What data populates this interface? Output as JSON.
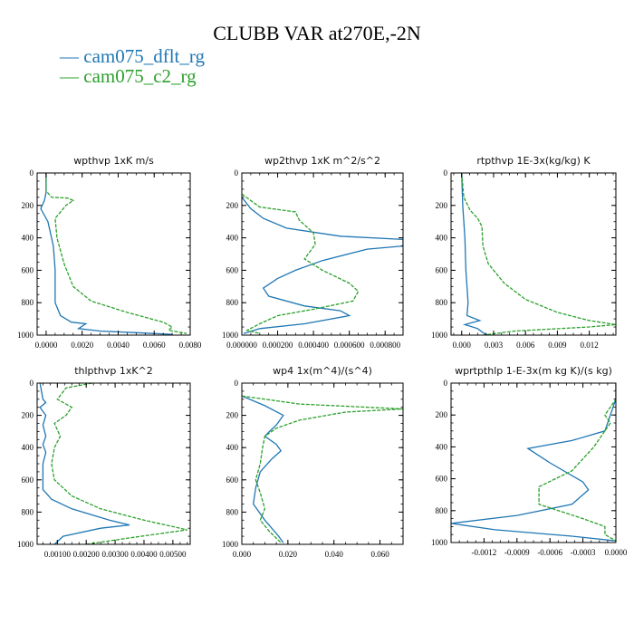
{
  "title": "CLUBB VAR at270E,-2N",
  "legend": [
    {
      "label": "— cam075_dflt_rg",
      "color": "#1f77b4"
    },
    {
      "label": "— cam075_c2_rg",
      "color": "#2ca02c"
    }
  ],
  "chart_data": [
    {
      "type": "line",
      "title": "wpthvp   1xK m/s",
      "xlim": [
        -0.0005,
        0.008
      ],
      "ylim": [
        1000,
        0
      ],
      "xticks": [
        0,
        0.002,
        0.004,
        0.006,
        0.008
      ],
      "xticklabels": [
        "0.0000",
        "0.0020",
        "0.0040",
        "0.0060",
        "0.0080"
      ],
      "yticks": [
        0,
        200,
        400,
        600,
        800,
        1000
      ],
      "yticklabels": [
        "0",
        "200",
        "400",
        "600",
        "800",
        "1000"
      ],
      "series": [
        {
          "name": "cam075_dflt_rg",
          "color": "#1f77b4",
          "points": [
            [
              0,
              0
            ],
            [
              0,
              120
            ],
            [
              -0.0001,
              170
            ],
            [
              -0.0003,
              220
            ],
            [
              0.0001,
              300
            ],
            [
              0.0004,
              450
            ],
            [
              0.0005,
              600
            ],
            [
              0.0005,
              800
            ],
            [
              0.0008,
              880
            ],
            [
              0.0014,
              920
            ],
            [
              0.0022,
              930
            ],
            [
              0.0018,
              960
            ],
            [
              0.003,
              975
            ],
            [
              0.005,
              985
            ],
            [
              0.007,
              995
            ]
          ]
        },
        {
          "name": "cam075_c2_rg",
          "color": "#2ca02c",
          "points": [
            [
              0,
              0
            ],
            [
              0,
              110
            ],
            [
              0.0003,
              150
            ],
            [
              0.0012,
              155
            ],
            [
              0.0015,
              170
            ],
            [
              0.0011,
              200
            ],
            [
              0.0005,
              280
            ],
            [
              0.0006,
              400
            ],
            [
              0.001,
              560
            ],
            [
              0.0015,
              700
            ],
            [
              0.0025,
              790
            ],
            [
              0.0045,
              860
            ],
            [
              0.0065,
              920
            ],
            [
              0.007,
              950
            ],
            [
              0.0068,
              970
            ],
            [
              0.0078,
              990
            ]
          ]
        }
      ]
    },
    {
      "type": "line",
      "title": "wp2thvp   1xK m^2/s^2",
      "xlim": [
        0,
        0.0009
      ],
      "ylim": [
        1000,
        0
      ],
      "xticks": [
        0,
        0.0002,
        0.0004,
        0.0006,
        0.0008
      ],
      "xticklabels": [
        "0.000000",
        "0.000200",
        "0.000400",
        "0.000600",
        "0.000800"
      ],
      "yticks": [
        0,
        200,
        400,
        600,
        800,
        1000
      ],
      "yticklabels": [
        "0",
        "200",
        "400",
        "600",
        "800",
        "1000"
      ],
      "series": [
        {
          "name": "cam075_dflt_rg",
          "color": "#1f77b4",
          "points": [
            [
              0,
              150
            ],
            [
              5e-05,
              220
            ],
            [
              0.00012,
              280
            ],
            [
              0.00025,
              340
            ],
            [
              0.00055,
              390
            ],
            [
              0.0009,
              410
            ],
            [
              0.0009,
              450
            ],
            [
              0.0007,
              470
            ],
            [
              0.00045,
              540
            ],
            [
              0.0003,
              600
            ],
            [
              0.0002,
              650
            ],
            [
              0.00012,
              710
            ],
            [
              0.00015,
              760
            ],
            [
              0.00035,
              820
            ],
            [
              0.00055,
              850
            ],
            [
              0.0006,
              880
            ],
            [
              0.00035,
              930
            ],
            [
              0.0001,
              960
            ],
            [
              1e-05,
              990
            ]
          ]
        },
        {
          "name": "cam075_c2_rg",
          "color": "#2ca02c",
          "points": [
            [
              0,
              130
            ],
            [
              0.0001,
              210
            ],
            [
              0.0003,
              240
            ],
            [
              0.00032,
              290
            ],
            [
              0.0004,
              370
            ],
            [
              0.00041,
              440
            ],
            [
              0.00035,
              530
            ],
            [
              0.00045,
              600
            ],
            [
              0.0006,
              680
            ],
            [
              0.00065,
              730
            ],
            [
              0.00062,
              790
            ],
            [
              0.0004,
              840
            ],
            [
              0.0002,
              880
            ],
            [
              0.0001,
              930
            ],
            [
              3e-05,
              970
            ],
            [
              0.0001,
              990
            ]
          ]
        }
      ]
    },
    {
      "type": "line",
      "title": "rtpthvp   1E-3x(kg/kg) K",
      "xlim": [
        -0.001,
        0.0145
      ],
      "ylim": [
        1000,
        0
      ],
      "xticks": [
        0,
        0.003,
        0.006,
        0.009,
        0.012
      ],
      "xticklabels": [
        "0.000",
        "0.003",
        "0.006",
        "0.009",
        "0.012"
      ],
      "yticks": [
        0,
        200,
        400,
        600,
        800,
        1000
      ],
      "yticklabels": [
        "0",
        "200",
        "400",
        "600",
        "800",
        "1000"
      ],
      "series": [
        {
          "name": "cam075_dflt_rg",
          "color": "#1f77b4",
          "points": [
            [
              0,
              0
            ],
            [
              0.0001,
              200
            ],
            [
              0.0003,
              400
            ],
            [
              0.0004,
              600
            ],
            [
              0.0006,
              800
            ],
            [
              0.0005,
              880
            ],
            [
              0.0017,
              910
            ],
            [
              0.0003,
              935
            ],
            [
              0.0015,
              960
            ],
            [
              0.002,
              985
            ],
            [
              0.0025,
              1000
            ]
          ]
        },
        {
          "name": "cam075_c2_rg",
          "color": "#2ca02c",
          "points": [
            [
              0,
              0
            ],
            [
              0.0002,
              150
            ],
            [
              0.0008,
              230
            ],
            [
              0.0015,
              280
            ],
            [
              0.0019,
              330
            ],
            [
              0.002,
              450
            ],
            [
              0.0025,
              560
            ],
            [
              0.004,
              680
            ],
            [
              0.006,
              780
            ],
            [
              0.009,
              860
            ],
            [
              0.012,
              910
            ],
            [
              0.0145,
              935
            ],
            [
              0.012,
              950
            ],
            [
              0.005,
              975
            ],
            [
              0.002,
              1000
            ]
          ]
        }
      ]
    },
    {
      "type": "line",
      "title": "thlpthvp   1xK^2",
      "xlim": [
        0.0003,
        0.0056
      ],
      "ylim": [
        1000,
        0
      ],
      "xticks": [
        0.001,
        0.002,
        0.003,
        0.004,
        0.005
      ],
      "xticklabels": [
        "0.00100",
        "0.00200",
        "0.00300",
        "0.00400",
        "0.00500"
      ],
      "yticks": [
        0,
        200,
        400,
        600,
        800,
        1000
      ],
      "yticklabels": [
        "0",
        "200",
        "400",
        "600",
        "800",
        "1000"
      ],
      "series": [
        {
          "name": "cam075_dflt_rg",
          "color": "#1f77b4",
          "points": [
            [
              0.0004,
              0
            ],
            [
              0.0005,
              100
            ],
            [
              0.0006,
              120
            ],
            [
              0.0004,
              150
            ],
            [
              0.0006,
              200
            ],
            [
              0.0005,
              260
            ],
            [
              0.0006,
              330
            ],
            [
              0.0005,
              380
            ],
            [
              0.0006,
              430
            ],
            [
              0.0005,
              500
            ],
            [
              0.0005,
              600
            ],
            [
              0.0005,
              660
            ],
            [
              0.0008,
              720
            ],
            [
              0.0015,
              780
            ],
            [
              0.0028,
              850
            ],
            [
              0.0035,
              880
            ],
            [
              0.0025,
              900
            ],
            [
              0.0012,
              950
            ],
            [
              0.0009,
              1000
            ]
          ]
        },
        {
          "name": "cam075_c2_rg",
          "color": "#2ca02c",
          "points": [
            [
              0.0022,
              0
            ],
            [
              0.0013,
              30
            ],
            [
              0.001,
              100
            ],
            [
              0.0015,
              150
            ],
            [
              0.0013,
              200
            ],
            [
              0.0009,
              250
            ],
            [
              0.0011,
              330
            ],
            [
              0.0009,
              400
            ],
            [
              0.0008,
              500
            ],
            [
              0.0009,
              600
            ],
            [
              0.0015,
              700
            ],
            [
              0.0025,
              780
            ],
            [
              0.004,
              850
            ],
            [
              0.0055,
              910
            ],
            [
              0.0035,
              960
            ],
            [
              0.002,
              1000
            ]
          ]
        }
      ]
    },
    {
      "type": "line",
      "title": "wp4   1x(m^4)/(s^4)",
      "xlim": [
        0,
        0.07
      ],
      "ylim": [
        1000,
        0
      ],
      "xticks": [
        0,
        0.02,
        0.04,
        0.06
      ],
      "xticklabels": [
        "0.000",
        "0.020",
        "0.040",
        "0.060"
      ],
      "yticks": [
        0,
        200,
        400,
        600,
        800,
        1000
      ],
      "yticklabels": [
        "0",
        "200",
        "400",
        "600",
        "800",
        "1000"
      ],
      "series": [
        {
          "name": "cam075_dflt_rg",
          "color": "#1f77b4",
          "points": [
            [
              0,
              80
            ],
            [
              0.01,
              140
            ],
            [
              0.018,
              200
            ],
            [
              0.015,
              260
            ],
            [
              0.012,
              300
            ],
            [
              0.01,
              330
            ],
            [
              0.015,
              380
            ],
            [
              0.017,
              420
            ],
            [
              0.013,
              470
            ],
            [
              0.008,
              550
            ],
            [
              0.006,
              650
            ],
            [
              0.005,
              750
            ],
            [
              0.01,
              850
            ],
            [
              0.016,
              950
            ],
            [
              0.018,
              990
            ]
          ]
        },
        {
          "name": "cam075_c2_rg",
          "color": "#2ca02c",
          "points": [
            [
              0,
              80
            ],
            [
              0.025,
              130
            ],
            [
              0.07,
              160
            ],
            [
              0.045,
              180
            ],
            [
              0.025,
              230
            ],
            [
              0.015,
              280
            ],
            [
              0.01,
              330
            ],
            [
              0.009,
              400
            ],
            [
              0.008,
              500
            ],
            [
              0.006,
              600
            ],
            [
              0.008,
              680
            ],
            [
              0.01,
              780
            ],
            [
              0.008,
              850
            ],
            [
              0.012,
              920
            ],
            [
              0.017,
              990
            ]
          ]
        }
      ]
    },
    {
      "type": "line",
      "title": "wprtpthlp   1-E-3x(m kg K)/(s kg)",
      "xlim": [
        -0.0015,
        0
      ],
      "ylim": [
        1000,
        0
      ],
      "xticks": [
        -0.0012,
        -0.0009,
        -0.0006,
        -0.0003,
        0
      ],
      "xticklabels": [
        "-0.0012",
        "-0.0009",
        "-0.0006",
        "-0.0003",
        "0.0000"
      ],
      "yticks": [
        0,
        200,
        400,
        600,
        800,
        1000
      ],
      "yticklabels": [
        "0",
        "200",
        "400",
        "600",
        "800",
        "1000"
      ],
      "series": [
        {
          "name": "cam075_dflt_rg",
          "color": "#1f77b4",
          "points": [
            [
              0,
              0
            ],
            [
              0,
              100
            ],
            [
              -5e-05,
              200
            ],
            [
              -0.0001,
              300
            ],
            [
              -0.0004,
              360
            ],
            [
              -0.0008,
              410
            ],
            [
              -0.0006,
              500
            ],
            [
              -0.0003,
              620
            ],
            [
              -0.00025,
              670
            ],
            [
              -0.0004,
              760
            ],
            [
              -0.0009,
              830
            ],
            [
              -0.0015,
              880
            ],
            [
              -0.0011,
              920
            ],
            [
              -0.0004,
              960
            ],
            [
              0,
              990
            ]
          ]
        },
        {
          "name": "cam075_c2_rg",
          "color": "#2ca02c",
          "points": [
            [
              0,
              0
            ],
            [
              0,
              100
            ],
            [
              -0.0001,
              200
            ],
            [
              -5e-05,
              250
            ],
            [
              -0.0002,
              400
            ],
            [
              -0.0004,
              550
            ],
            [
              -0.0007,
              650
            ],
            [
              -0.0007,
              760
            ],
            [
              -0.0003,
              850
            ],
            [
              -0.0001,
              900
            ],
            [
              -0.0001,
              950
            ],
            [
              0,
              990
            ]
          ]
        }
      ]
    }
  ]
}
